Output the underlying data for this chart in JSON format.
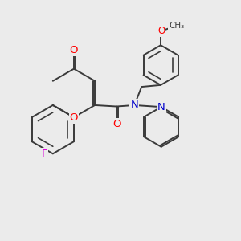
{
  "bg_color": "#ebebeb",
  "bond_color": "#3a3a3a",
  "bond_width": 1.4,
  "atom_colors": {
    "O": "#ff0000",
    "N": "#0000cc",
    "F": "#dd00dd",
    "C": "#3a3a3a"
  },
  "font_size": 8.5,
  "fig_size": [
    3.0,
    3.0
  ],
  "dpi": 100
}
